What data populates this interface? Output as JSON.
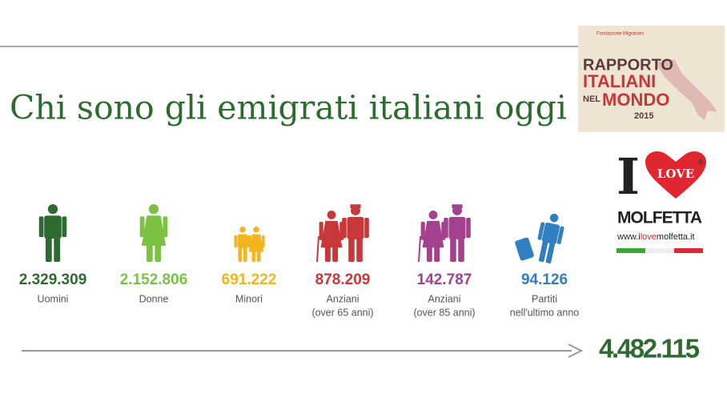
{
  "header": {
    "title": "Chi sono gli emigrati italiani oggi"
  },
  "logo_report": {
    "org": "Fondazione Migrantes",
    "line1": "RAPPORTO",
    "line2": "ITALIANI",
    "line3a": "NEL",
    "line3b": "MONDO",
    "year": "2015"
  },
  "logo_molfetta": {
    "i": "I",
    "love": "LOVE",
    "reg": "®",
    "name": "MOLFETTA",
    "url_a": "www.i",
    "url_b": "love",
    "url_c": "molfetta.it"
  },
  "groups": [
    {
      "icon": "man",
      "value": "2.329.309",
      "label_lines": [
        "Uomini"
      ],
      "color": "#2e6b30"
    },
    {
      "icon": "woman",
      "value": "2.152.806",
      "label_lines": [
        "Donne"
      ],
      "color": "#7cc242"
    },
    {
      "icon": "children",
      "value": "691.222",
      "label_lines": [
        "Minori"
      ],
      "color": "#f2b51c"
    },
    {
      "icon": "elderly",
      "value": "878.209",
      "label_lines": [
        "Anziani",
        "(over 65 anni)"
      ],
      "color": "#c8373a"
    },
    {
      "icon": "elderly",
      "value": "142.787",
      "label_lines": [
        "Anziani",
        "(over 85 anni)"
      ],
      "color": "#a4418f"
    },
    {
      "icon": "traveler",
      "value": "94.126",
      "label_lines": [
        "Partiti",
        "nell'ultimo anno"
      ],
      "color": "#2f7fc1"
    }
  ],
  "total": "4.482.115"
}
